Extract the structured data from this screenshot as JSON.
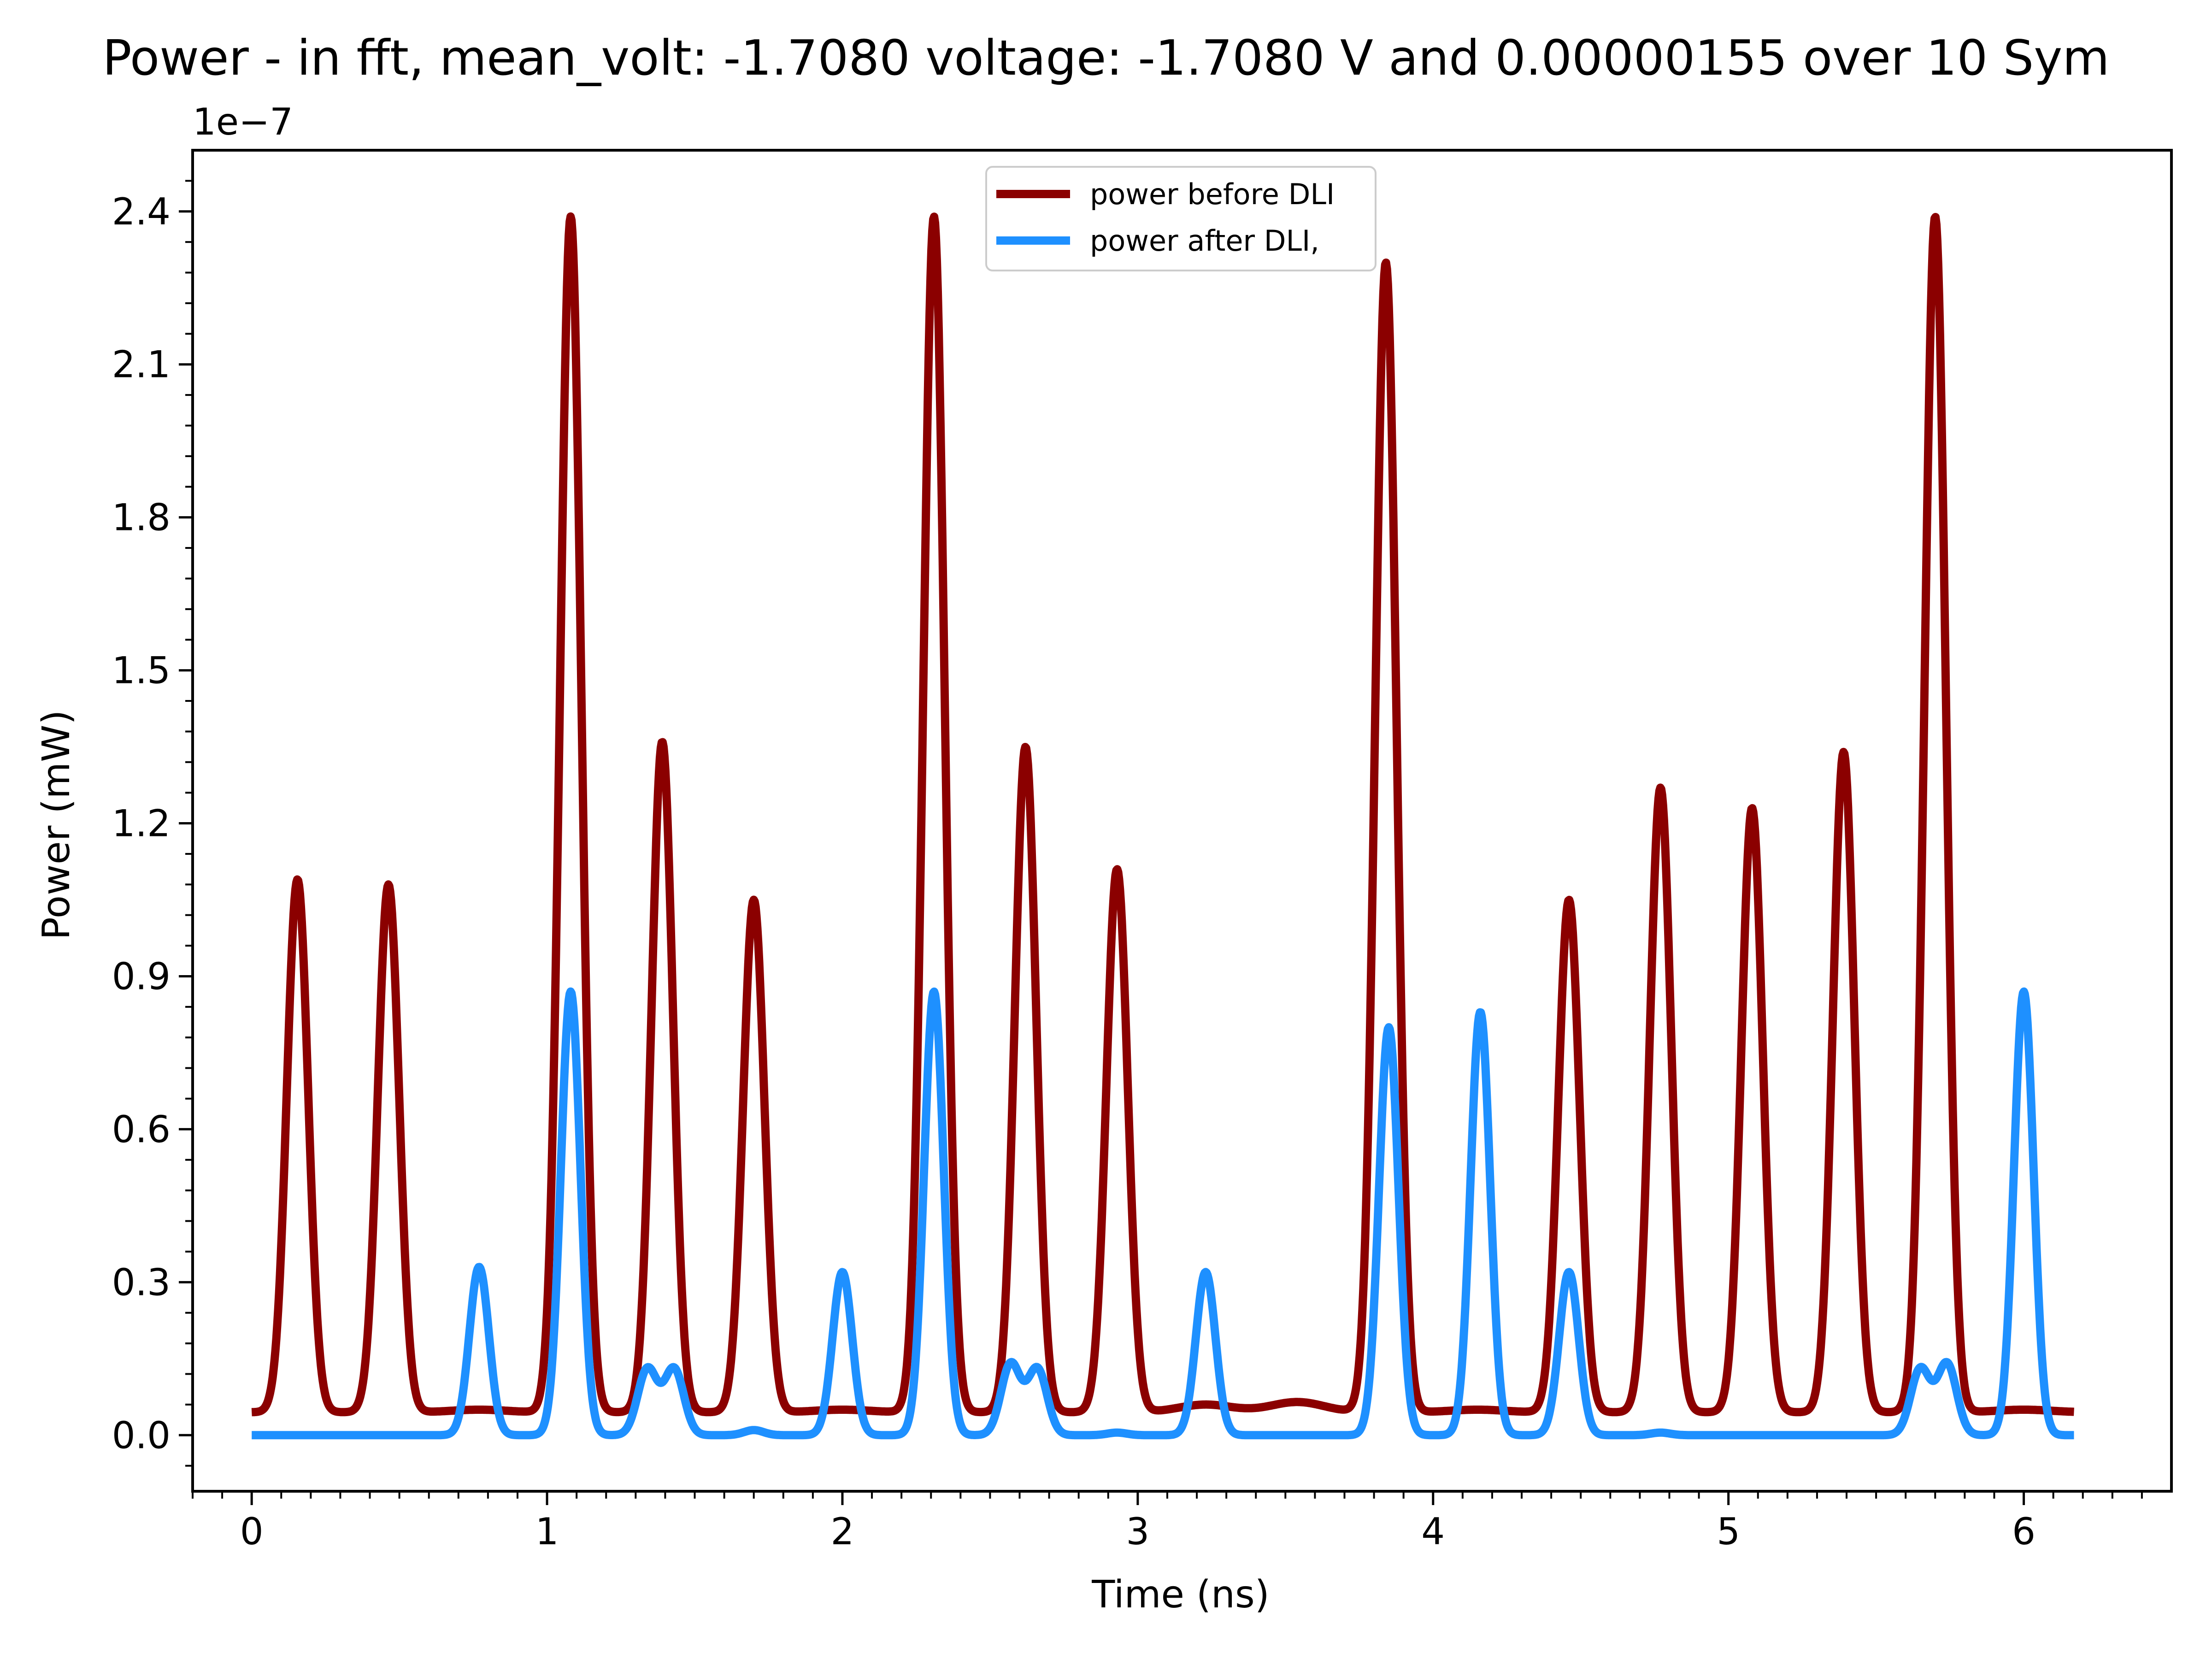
{
  "chart_data": {
    "type": "line",
    "title": "Power - in fft, mean_volt: -1.7080 voltage: -1.7080 V and 0.00000155 over 10 Sym",
    "xlabel": "Time (ns)",
    "ylabel": "Power (mW)",
    "offset_text": "1e−7",
    "xlim": [
      -0.2,
      6.5
    ],
    "ylim": [
      -0.11,
      2.52
    ],
    "x_ticks": [
      0,
      1,
      2,
      3,
      4,
      5,
      6
    ],
    "x_tick_labels": [
      "0",
      "1",
      "2",
      "3",
      "4",
      "5",
      "6"
    ],
    "y_ticks": [
      0.0,
      0.3,
      0.6,
      0.9,
      1.2,
      1.5,
      1.8,
      2.1,
      2.4
    ],
    "y_tick_labels": [
      "0.0",
      "0.3",
      "0.6",
      "0.9",
      "1.2",
      "1.5",
      "1.8",
      "2.1",
      "2.4"
    ],
    "grid": false,
    "legend_position": "top-center",
    "series": [
      {
        "name": "power before DLI",
        "color": "#8b0000",
        "baseline": 0.045,
        "x_range": [
          0,
          6.17
        ],
        "peaks": [
          {
            "x": 0.155,
            "y": 1.09
          },
          {
            "x": 0.463,
            "y": 1.08
          },
          {
            "x": 1.08,
            "y": 2.39
          },
          {
            "x": 1.39,
            "y": 1.36
          },
          {
            "x": 1.7,
            "y": 1.05
          },
          {
            "x": 2.31,
            "y": 2.39
          },
          {
            "x": 2.62,
            "y": 1.35
          },
          {
            "x": 2.93,
            "y": 1.11
          },
          {
            "x": 3.84,
            "y": 2.3
          },
          {
            "x": 4.46,
            "y": 1.05
          },
          {
            "x": 4.77,
            "y": 1.27
          },
          {
            "x": 5.08,
            "y": 1.23
          },
          {
            "x": 5.39,
            "y": 1.34
          },
          {
            "x": 5.7,
            "y": 2.39
          }
        ],
        "bumps": [
          {
            "x": 0.77,
            "y": 0.05
          },
          {
            "x": 2.0,
            "y": 0.05
          },
          {
            "x": 3.23,
            "y": 0.06
          },
          {
            "x": 3.54,
            "y": 0.065
          },
          {
            "x": 4.15,
            "y": 0.05
          },
          {
            "x": 6.0,
            "y": 0.05
          }
        ]
      },
      {
        "name": "power after DLI,",
        "color": "#1e90ff",
        "baseline": 0.0,
        "x_range": [
          0,
          6.17
        ],
        "peaks": [
          {
            "x": 0.77,
            "y": 0.33
          },
          {
            "x": 1.08,
            "y": 0.87
          },
          {
            "x": 1.34,
            "y": 0.13
          },
          {
            "x": 1.43,
            "y": 0.13
          },
          {
            "x": 1.7,
            "y": 0.01
          },
          {
            "x": 2.0,
            "y": 0.32
          },
          {
            "x": 2.31,
            "y": 0.87
          },
          {
            "x": 2.57,
            "y": 0.14
          },
          {
            "x": 2.66,
            "y": 0.13
          },
          {
            "x": 2.93,
            "y": 0.005
          },
          {
            "x": 3.23,
            "y": 0.32
          },
          {
            "x": 3.85,
            "y": 0.8
          },
          {
            "x": 4.16,
            "y": 0.83
          },
          {
            "x": 4.46,
            "y": 0.32
          },
          {
            "x": 4.77,
            "y": 0.005
          },
          {
            "x": 5.65,
            "y": 0.13
          },
          {
            "x": 5.74,
            "y": 0.14
          },
          {
            "x": 6.0,
            "y": 0.87
          }
        ]
      }
    ]
  }
}
